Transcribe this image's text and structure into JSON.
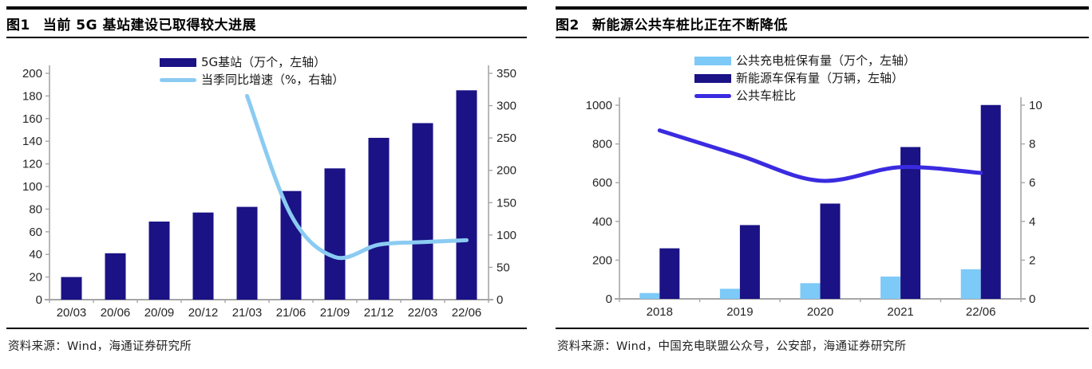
{
  "panels": [
    {
      "fig_label": "图1",
      "title": "当前 5G 基站建设已取得较大进展",
      "source": "资料来源：Wind，海通证券研究所"
    },
    {
      "fig_label": "图2",
      "title": "新能源公共车桩比正在不断降低",
      "source": "资料来源：Wind，中国充电联盟公众号，公安部，海通证券研究所"
    }
  ],
  "colors": {
    "navy": "#1A1285",
    "sky_bar": "#7DC9F7",
    "sky_line": "#8BCBF2",
    "ratio_line": "#3A2BE0",
    "axis": "#A6A6A6",
    "tick_label": "#262626"
  },
  "chart_data": [
    {
      "type": "bar+line",
      "title": "当前5G基站建设已取得较大进展",
      "categories": [
        "20/03",
        "20/06",
        "20/09",
        "20/12",
        "21/03",
        "21/06",
        "21/09",
        "21/12",
        "22/03",
        "22/06"
      ],
      "series": [
        {
          "name": "5G基站（万个，左轴）",
          "kind": "bar",
          "axis": "left",
          "color_key": "navy",
          "values": [
            20,
            41,
            69,
            77,
            82,
            96,
            116,
            143,
            156,
            185
          ]
        },
        {
          "name": "当季同比增速（%，右轴）",
          "kind": "line",
          "axis": "right",
          "color_key": "sky_line",
          "values": [
            null,
            null,
            null,
            null,
            315,
            131,
            66,
            85,
            89,
            92
          ]
        }
      ],
      "left_axis": {
        "min": 0,
        "max": 200,
        "step": 20
      },
      "right_axis": {
        "min": 0,
        "max": 350,
        "step": 50
      },
      "legend_position": "top",
      "grid": false
    },
    {
      "type": "bar+line",
      "title": "新能源公共车桩比正在不断降低",
      "categories": [
        "2018",
        "2019",
        "2020",
        "2021",
        "22/06"
      ],
      "series": [
        {
          "name": "公共充电桩保有量（万个，左轴）",
          "kind": "bar",
          "axis": "left",
          "color_key": "sky_bar",
          "values": [
            30,
            52,
            81,
            115,
            153
          ]
        },
        {
          "name": "新能源车保有量（万辆，左轴）",
          "kind": "bar",
          "axis": "left",
          "color_key": "navy",
          "values": [
            261,
            381,
            492,
            784,
            1001
          ]
        },
        {
          "name": "公共车桩比",
          "kind": "line",
          "axis": "right",
          "color_key": "ratio_line",
          "values": [
            8.7,
            7.4,
            6.1,
            6.8,
            6.5
          ]
        }
      ],
      "left_axis": {
        "min": 0,
        "max": 1000,
        "step": 200
      },
      "right_axis": {
        "min": 0,
        "max": 10,
        "step": 2
      },
      "legend_position": "top",
      "grid": false
    }
  ]
}
